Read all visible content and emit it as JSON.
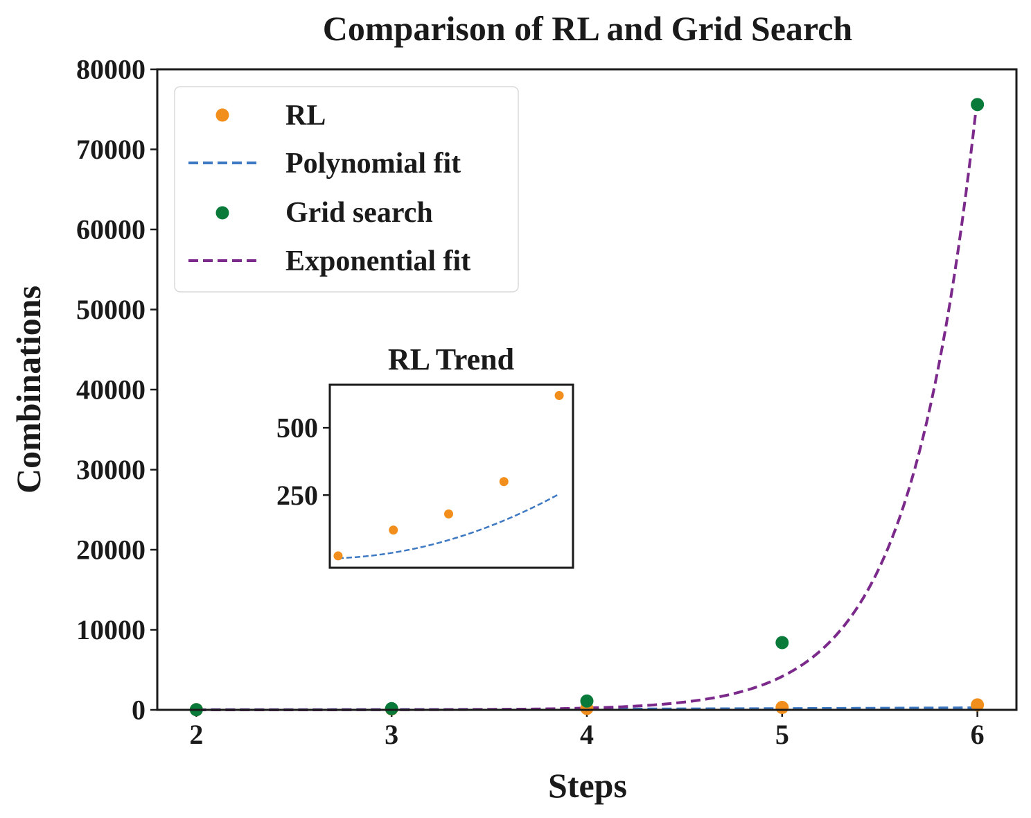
{
  "chart_data": [
    {
      "type": "scatter",
      "title": "Comparison of RL and Grid Search",
      "xlabel": "Steps",
      "ylabel": "Combinations",
      "xlim": [
        1.8,
        6.2
      ],
      "ylim": [
        0,
        80000
      ],
      "x_ticks": [
        2,
        3,
        4,
        5,
        6
      ],
      "y_ticks": [
        0,
        10000,
        20000,
        30000,
        40000,
        50000,
        60000,
        70000,
        80000
      ],
      "legend_position": "upper-left",
      "grid": false,
      "series": [
        {
          "name": "RL",
          "kind": "points",
          "color": "#f28e1c",
          "x": [
            2,
            3,
            4,
            5,
            6
          ],
          "y": [
            24,
            120,
            180,
            300,
            620
          ]
        },
        {
          "name": "Polynomial fit",
          "kind": "dashed-line",
          "color": "#3d78c3",
          "fit": "polynomial",
          "coefficients": [
            52.4,
            -44.4,
            13.0
          ]
        },
        {
          "name": "Grid search",
          "kind": "points",
          "color": "#0a7a3a",
          "x": [
            2,
            3,
            4,
            5,
            6
          ],
          "y": [
            20,
            150,
            1100,
            8400,
            75600
          ]
        },
        {
          "name": "Exponential fit",
          "kind": "dashed-line",
          "color": "#7b2a8b",
          "fit": "exponential",
          "a": 0.002,
          "b": 2.91
        }
      ]
    },
    {
      "type": "scatter",
      "title": "RL Trend",
      "xlim": [
        1.85,
        6.25
      ],
      "ylim": [
        -20,
        660
      ],
      "y_ticks": [
        250,
        500
      ],
      "grid": false,
      "series": [
        {
          "name": "RL",
          "kind": "points",
          "color": "#f28e1c",
          "x": [
            2,
            3,
            4,
            5,
            6
          ],
          "y": [
            24,
            120,
            180,
            300,
            620
          ]
        },
        {
          "name": "Polynomial fit",
          "kind": "dashed-line",
          "color": "#3d78c3",
          "fit": "polynomial",
          "coefficients": [
            52.4,
            -44.4,
            13.0
          ]
        }
      ]
    }
  ]
}
